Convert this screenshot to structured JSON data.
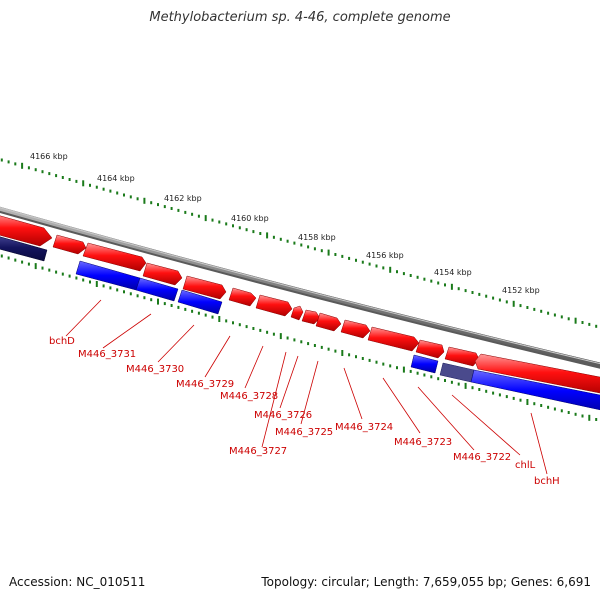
{
  "title": "Methylobacterium sp. 4-46, complete genome",
  "footer": {
    "accession": "Accession: NC_010511",
    "topology": "Topology: circular; Length: 7,659,055 bp; Genes: 6,691"
  },
  "scale_labels": [
    "4166 kbp",
    "4164 kbp",
    "4162 kbp",
    "4160 kbp",
    "4158 kbp",
    "4156 kbp",
    "4154 kbp",
    "4152 kbp"
  ],
  "gene_labels": [
    "bchD",
    "M446_3731",
    "M446_3730",
    "M446_3729",
    "M446_3728",
    "M446_3726",
    "M446_3725",
    "M446_3727",
    "M446_3724",
    "M446_3723",
    "M446_3722",
    "chlL",
    "bchH"
  ],
  "colors": {
    "forward_gene": "#ff0000",
    "reverse_gene": "#0000ff",
    "selected_gene": "#1a1a6e",
    "backbone": "#808080",
    "tick": "#1a7a1a",
    "label": "#cc0000"
  }
}
